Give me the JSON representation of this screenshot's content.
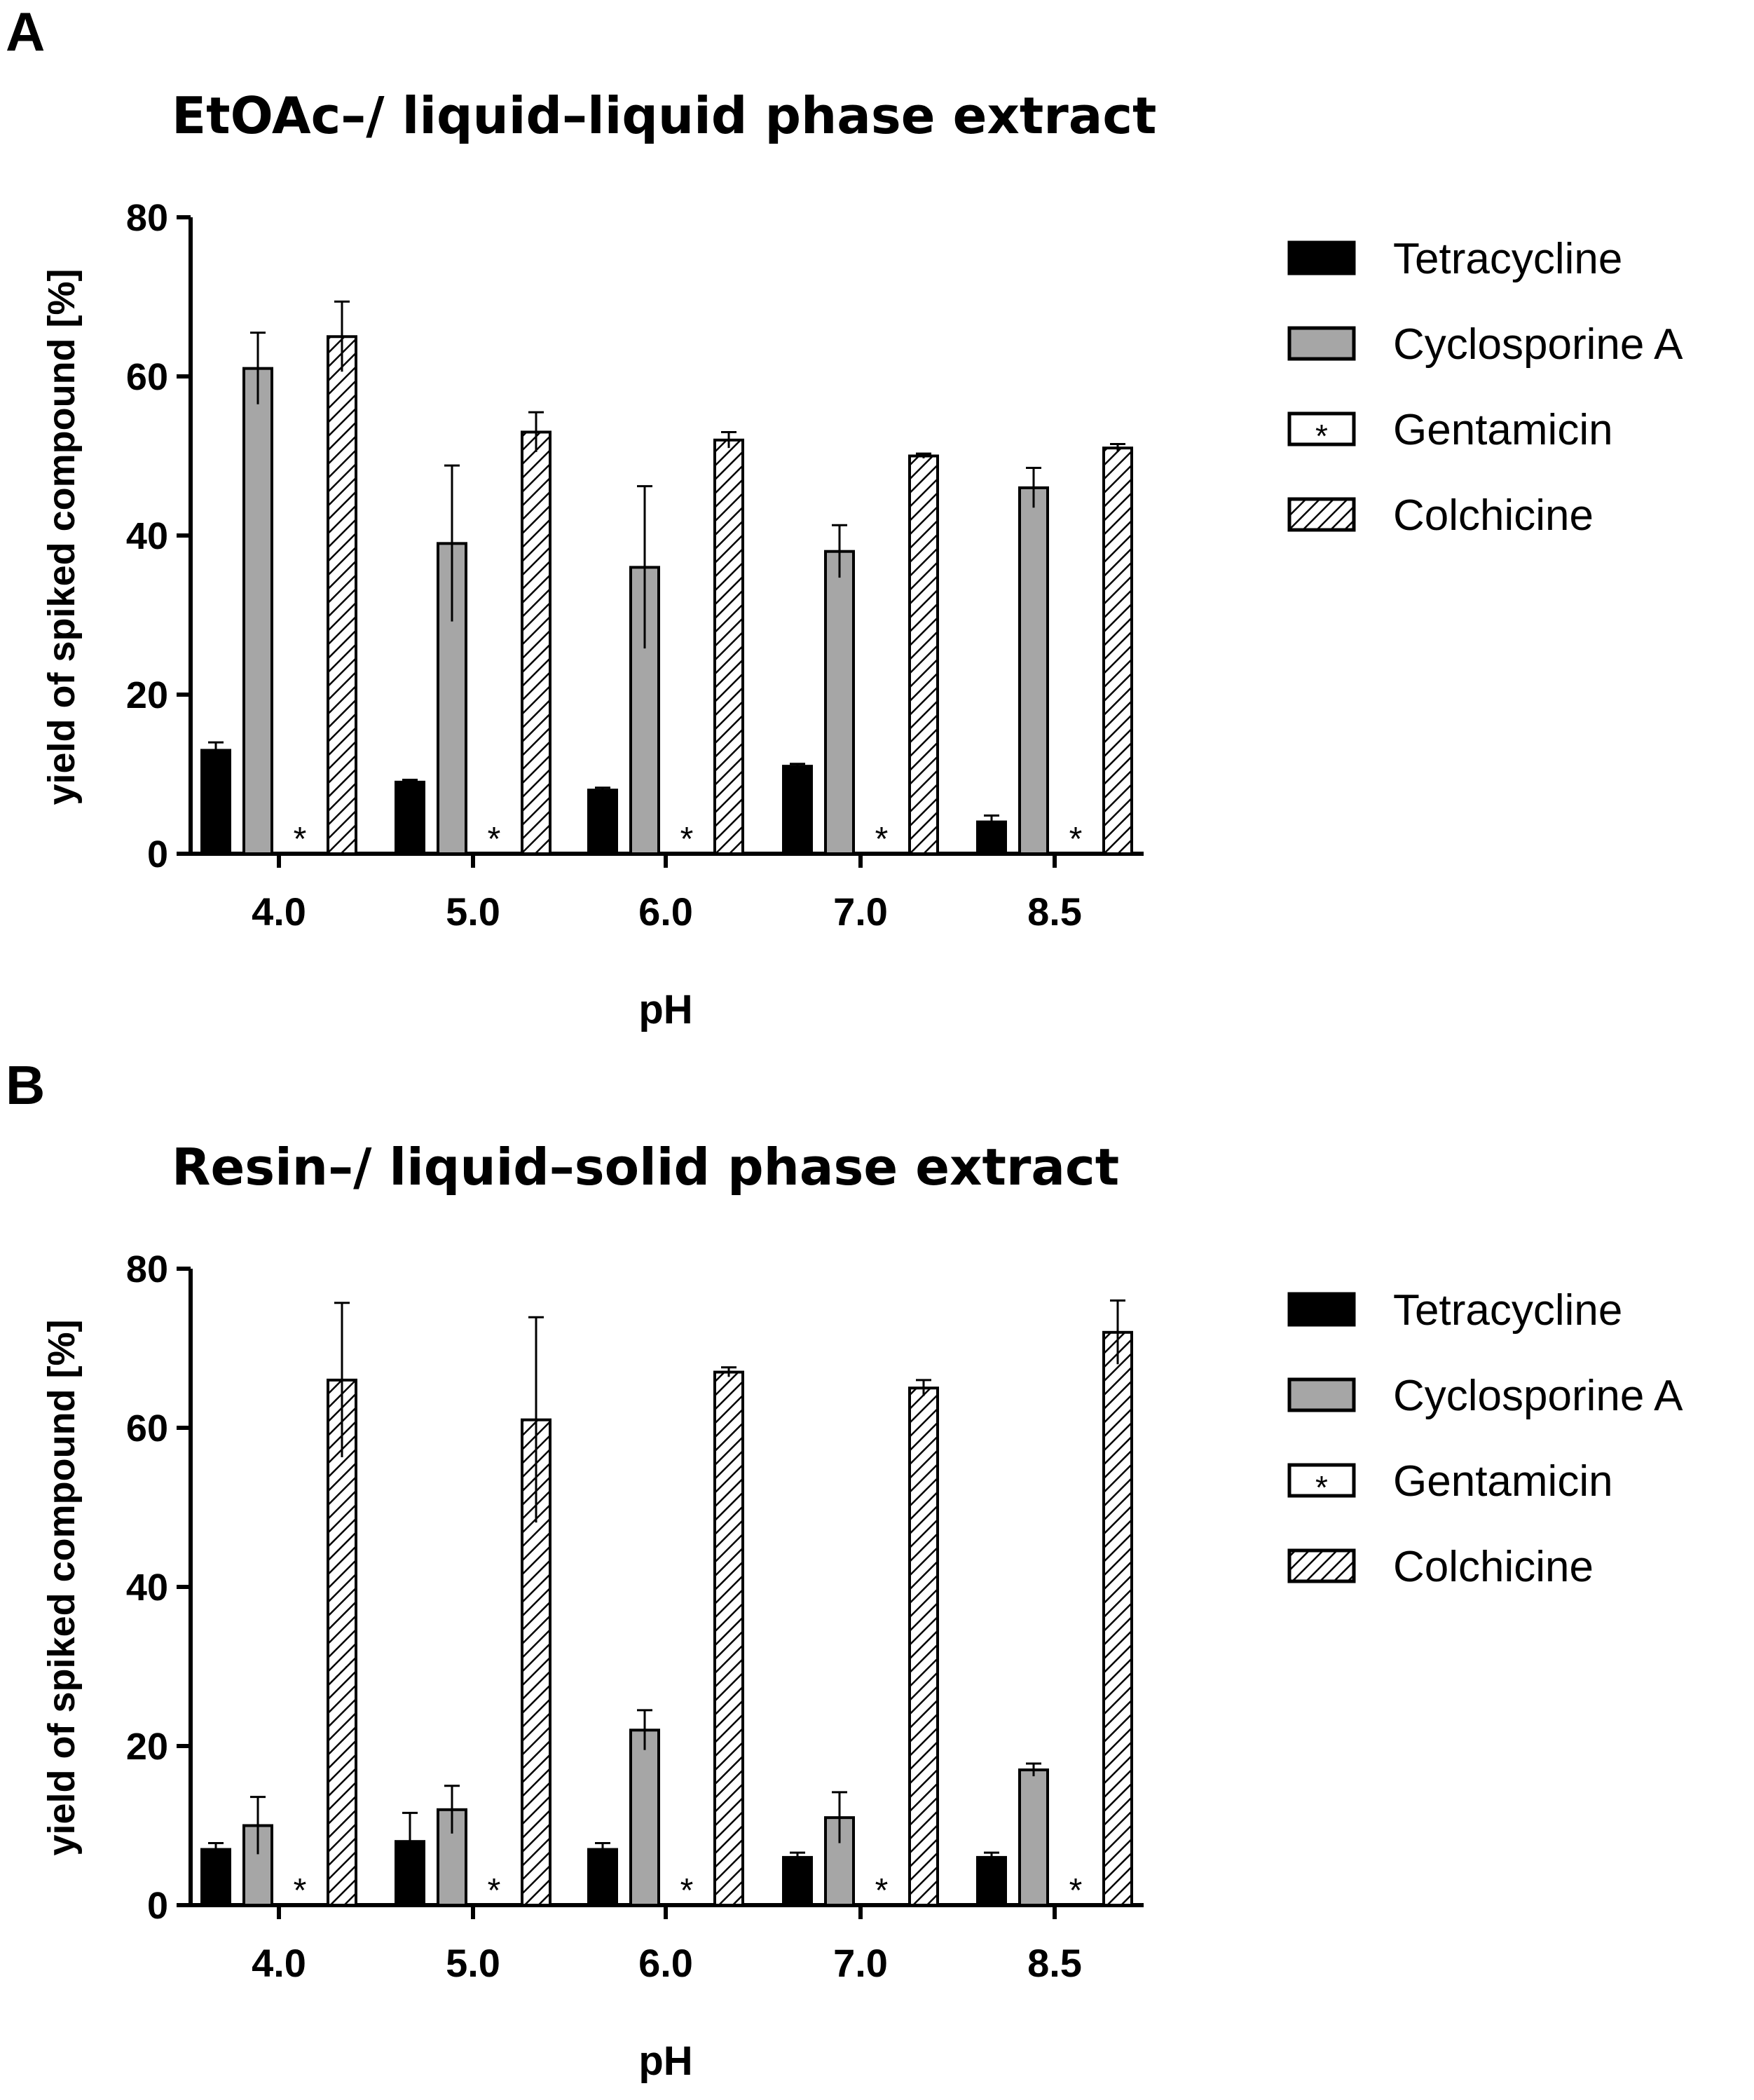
{
  "figure": {
    "panels": [
      {
        "label": "A",
        "title": "EtOAc–/ liquid–liquid phase extract"
      },
      {
        "label": "B",
        "title": "Resin–/ liquid–solid phase extract"
      }
    ]
  },
  "colors": {
    "tetracycline": "#000000",
    "cyclosporine": "#a6a6a6",
    "gentamicin": "#ffffff",
    "colchicine_hatch": "#000000",
    "axis": "#000000"
  },
  "gentamicin_marker": "*",
  "chart_data": [
    {
      "type": "bar",
      "title": "EtOAc–/ liquid–liquid phase extract",
      "xlabel": "pH",
      "ylabel": "yield of spiked compound [%]",
      "categories": [
        "4.0",
        "5.0",
        "6.0",
        "7.0",
        "8.5"
      ],
      "ylim": [
        0,
        80
      ],
      "yticks": [
        0,
        20,
        40,
        60,
        80
      ],
      "legend_position": "right",
      "series": [
        {
          "name": "Tetracycline",
          "values": [
            13,
            9,
            8,
            11,
            4
          ],
          "errors": [
            1,
            0.3,
            0.3,
            0.3,
            0.8
          ]
        },
        {
          "name": "Cyclosporine A",
          "values": [
            61,
            39,
            36,
            38,
            46
          ],
          "errors": [
            4.5,
            9.8,
            10.2,
            3.3,
            2.5
          ]
        },
        {
          "name": "Gentamicin",
          "values": [
            0,
            0,
            0,
            0,
            0
          ],
          "errors": [
            0,
            0,
            0,
            0,
            0
          ]
        },
        {
          "name": "Colchicine",
          "values": [
            65,
            53,
            52,
            50,
            51
          ],
          "errors": [
            4.4,
            2.5,
            1,
            0.3,
            0.5
          ]
        }
      ]
    },
    {
      "type": "bar",
      "title": "Resin–/ liquid–solid phase extract",
      "xlabel": "pH",
      "ylabel": "yield of spiked compound [%]",
      "categories": [
        "4.0",
        "5.0",
        "6.0",
        "7.0",
        "8.5"
      ],
      "ylim": [
        0,
        80
      ],
      "yticks": [
        0,
        20,
        40,
        60,
        80
      ],
      "legend_position": "right",
      "series": [
        {
          "name": "Tetracycline",
          "values": [
            7,
            8,
            7,
            6,
            6
          ],
          "errors": [
            0.8,
            3.6,
            0.8,
            0.6,
            0.6
          ]
        },
        {
          "name": "Cyclosporine A",
          "values": [
            10,
            12,
            22,
            11,
            17
          ],
          "errors": [
            3.6,
            3,
            2.5,
            3.2,
            0.8
          ]
        },
        {
          "name": "Gentamicin",
          "values": [
            0,
            0,
            0,
            0,
            0
          ],
          "errors": [
            0,
            0,
            0,
            0,
            0
          ]
        },
        {
          "name": "Colchicine",
          "values": [
            66,
            61,
            67,
            65,
            72
          ],
          "errors": [
            9.7,
            12.9,
            0.6,
            1,
            4
          ]
        }
      ]
    }
  ]
}
